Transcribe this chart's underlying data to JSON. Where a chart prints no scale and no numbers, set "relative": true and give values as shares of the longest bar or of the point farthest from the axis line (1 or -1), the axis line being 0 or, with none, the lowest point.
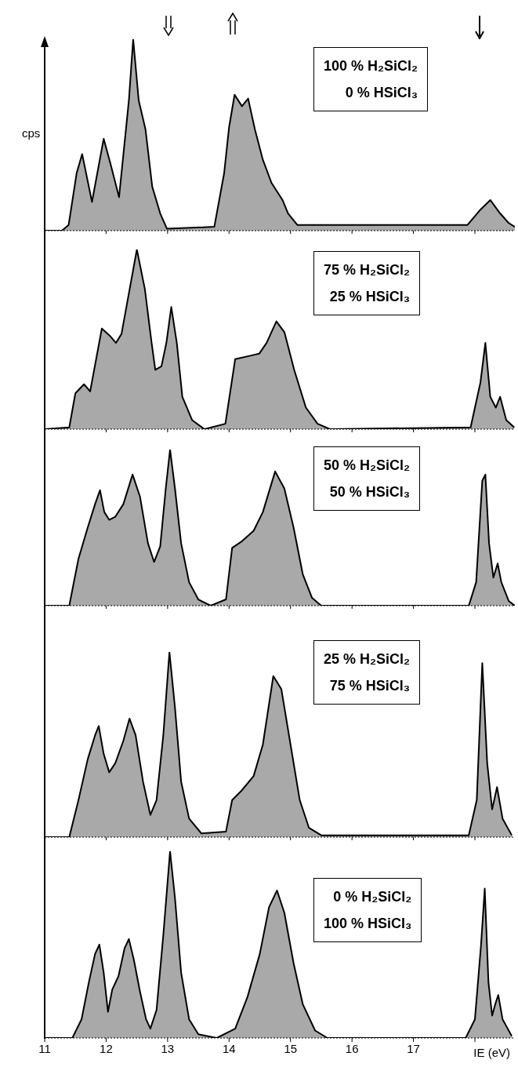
{
  "chart_data": [
    {
      "type": "area",
      "relative": true,
      "color": "#a9a9a9",
      "ylabel": "cps",
      "tick_labels": false,
      "xlim": [
        11,
        18.65
      ],
      "xticks": [
        11,
        12,
        13,
        14,
        15,
        16,
        17,
        18
      ],
      "annotations": [
        "100 % H₂SiCl₂",
        "0 % HSiCl₃"
      ],
      "x": [
        11,
        11.28,
        11.39,
        11.52,
        11.61,
        11.77,
        11.96,
        12.07,
        12.21,
        12.37,
        12.44,
        12.53,
        12.64,
        12.75,
        12.88,
        12.99,
        13.76,
        13.92,
        14.0,
        14.09,
        14.21,
        14.31,
        14.42,
        14.55,
        14.69,
        14.87,
        14.96,
        15.11,
        17.88,
        18.09,
        18.25,
        18.41,
        18.55,
        18.65
      ],
      "values": [
        0,
        0,
        0.03,
        0.3,
        0.4,
        0.15,
        0.48,
        0.35,
        0.175,
        0.68,
        1.0,
        0.68,
        0.53,
        0.23,
        0.09,
        0.01,
        0.02,
        0.3,
        0.54,
        0.71,
        0.65,
        0.69,
        0.53,
        0.37,
        0.25,
        0.16,
        0.09,
        0.03,
        0.03,
        0.11,
        0.16,
        0.09,
        0.04,
        0.02
      ]
    },
    {
      "type": "area",
      "relative": true,
      "color": "#a9a9a9",
      "tick_labels": false,
      "xlim": [
        11,
        18.65
      ],
      "xticks": [
        11,
        12,
        13,
        14,
        15,
        16,
        17,
        18
      ],
      "annotations": [
        "75 % H₂SiCl₂",
        "25 % HSiCl₃"
      ],
      "x": [
        11,
        11.4,
        11.5,
        11.64,
        11.74,
        11.93,
        12.06,
        12.16,
        12.25,
        12.5,
        12.63,
        12.74,
        12.8,
        12.9,
        12.98,
        13.06,
        13.15,
        13.24,
        13.4,
        13.6,
        13.94,
        14.1,
        14.36,
        14.49,
        14.61,
        14.77,
        14.9,
        15.06,
        15.25,
        15.44,
        15.64,
        17.93,
        18.09,
        18.17,
        18.25,
        18.34,
        18.41,
        18.51,
        18.64
      ],
      "values": [
        0,
        0.01,
        0.2,
        0.25,
        0.21,
        0.56,
        0.52,
        0.48,
        0.53,
        1.0,
        0.78,
        0.48,
        0.33,
        0.35,
        0.48,
        0.68,
        0.48,
        0.18,
        0.05,
        0,
        0.03,
        0.39,
        0.41,
        0.42,
        0.48,
        0.6,
        0.54,
        0.33,
        0.12,
        0.03,
        0,
        0.01,
        0.26,
        0.48,
        0.18,
        0.12,
        0.18,
        0.05,
        0.01
      ]
    },
    {
      "type": "area",
      "relative": true,
      "color": "#a9a9a9",
      "tick_labels": false,
      "xlim": [
        11,
        18.65
      ],
      "xticks": [
        11,
        12,
        13,
        14,
        15,
        16,
        17,
        18
      ],
      "annotations": [
        "50 % H₂SiCl₂",
        "50 % HSiCl₃"
      ],
      "x": [
        11,
        11.4,
        11.55,
        11.7,
        11.82,
        11.9,
        11.97,
        12.05,
        12.15,
        12.28,
        12.43,
        12.55,
        12.68,
        12.78,
        12.88,
        12.97,
        13.04,
        13.12,
        13.22,
        13.35,
        13.5,
        13.7,
        13.95,
        14.05,
        14.2,
        14.4,
        14.55,
        14.75,
        14.9,
        15.05,
        15.2,
        15.35,
        15.5,
        17.9,
        18.02,
        18.12,
        18.17,
        18.23,
        18.3,
        18.37,
        18.43,
        18.55,
        18.65
      ],
      "values": [
        0,
        0,
        0.3,
        0.5,
        0.65,
        0.74,
        0.6,
        0.55,
        0.57,
        0.65,
        0.84,
        0.7,
        0.4,
        0.28,
        0.38,
        0.75,
        1.0,
        0.75,
        0.4,
        0.15,
        0.04,
        0,
        0.04,
        0.37,
        0.41,
        0.48,
        0.6,
        0.86,
        0.75,
        0.5,
        0.2,
        0.05,
        0,
        0,
        0.15,
        0.8,
        0.84,
        0.4,
        0.18,
        0.27,
        0.15,
        0.03,
        0
      ]
    },
    {
      "type": "area",
      "relative": true,
      "color": "#a9a9a9",
      "tick_labels": false,
      "xlim": [
        11,
        18.65
      ],
      "xticks": [
        11,
        12,
        13,
        14,
        15,
        16,
        17,
        18
      ],
      "annotations": [
        "25 % H₂SiCl₂",
        "75 % HSiCl₃"
      ],
      "x": [
        11,
        11.4,
        11.55,
        11.7,
        11.82,
        11.88,
        11.96,
        12.05,
        12.15,
        12.28,
        12.38,
        12.48,
        12.6,
        12.72,
        12.82,
        12.93,
        13.03,
        13.12,
        13.22,
        13.35,
        13.55,
        13.95,
        14.05,
        14.2,
        14.4,
        14.55,
        14.72,
        14.85,
        15.0,
        15.15,
        15.3,
        15.5,
        17.9,
        18.03,
        18.12,
        18.2,
        18.28,
        18.36,
        18.45,
        18.6
      ],
      "values": [
        0,
        0,
        0.2,
        0.42,
        0.55,
        0.6,
        0.45,
        0.35,
        0.4,
        0.52,
        0.64,
        0.55,
        0.3,
        0.12,
        0.2,
        0.55,
        1.0,
        0.7,
        0.3,
        0.1,
        0.02,
        0.03,
        0.2,
        0.25,
        0.33,
        0.5,
        0.87,
        0.8,
        0.5,
        0.2,
        0.05,
        0.01,
        0.01,
        0.2,
        0.94,
        0.4,
        0.15,
        0.27,
        0.1,
        0.01
      ]
    },
    {
      "type": "area",
      "relative": true,
      "color": "#a9a9a9",
      "xlabel": "IE (eV)",
      "xlim": [
        11,
        18.65
      ],
      "xticks": [
        11,
        12,
        13,
        14,
        15,
        16,
        17,
        {
          "value": 18,
          "label": null
        }
      ],
      "annotations": [
        "0 % H₂SiCl₂",
        "100 % HSiCl₃"
      ],
      "x": [
        11,
        11.45,
        11.6,
        11.72,
        11.82,
        11.89,
        11.96,
        12.03,
        12.1,
        12.2,
        12.3,
        12.37,
        12.45,
        12.55,
        12.65,
        12.72,
        12.82,
        12.93,
        13.04,
        13.12,
        13.22,
        13.35,
        13.5,
        13.8,
        14.1,
        14.3,
        14.5,
        14.65,
        14.78,
        14.9,
        15.05,
        15.2,
        15.4,
        15.6,
        17.85,
        18.0,
        18.1,
        18.16,
        18.22,
        18.28,
        18.33,
        18.38,
        18.45,
        18.6
      ],
      "values": [
        0,
        0,
        0.1,
        0.3,
        0.45,
        0.5,
        0.35,
        0.14,
        0.26,
        0.33,
        0.48,
        0.53,
        0.42,
        0.25,
        0.1,
        0.05,
        0.15,
        0.55,
        1.0,
        0.75,
        0.35,
        0.1,
        0.02,
        0,
        0.05,
        0.22,
        0.45,
        0.7,
        0.79,
        0.67,
        0.4,
        0.18,
        0.04,
        0,
        0,
        0.1,
        0.5,
        0.8,
        0.3,
        0.12,
        0.18,
        0.23,
        0.1,
        0.01
      ]
    }
  ]
}
